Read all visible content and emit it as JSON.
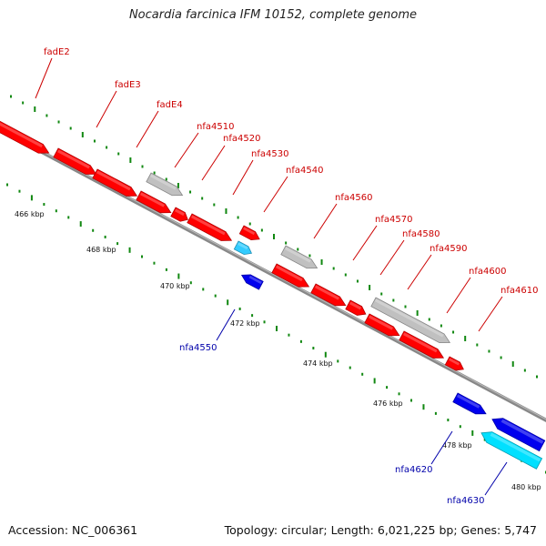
{
  "header": {
    "title": "Nocardia farcinica IFM 10152, complete genome"
  },
  "footer": {
    "accession": "Accession: NC_006361",
    "summary": "Topology: circular; Length: 6,021,225 bp; Genes: 5,747"
  },
  "colors": {
    "forward_gene": "#ff0000",
    "reverse_gene": "#0000ee",
    "other_gene": "#c0c0c0",
    "cyan_gene": "#00e0ff",
    "light_blue_gene": "#33ccff",
    "label_forward": "#cc0000",
    "label_reverse": "#0000aa",
    "backbone": "#888888",
    "tick_major": "#118811"
  },
  "scale": {
    "tick_labels": [
      "466 kbp",
      "468 kbp",
      "470 kbp",
      "472 kbp",
      "474 kbp",
      "476 kbp",
      "478 kbp",
      "480 kbp"
    ]
  },
  "genes": [
    {
      "name": "fadE2",
      "strand": "forward",
      "color": "forward_gene"
    },
    {
      "name": "fadE3",
      "strand": "forward",
      "color": "forward_gene"
    },
    {
      "name": "fadE4",
      "strand": "forward",
      "color": "forward_gene"
    },
    {
      "name": "nfa4510",
      "strand": "forward",
      "color": "other_gene"
    },
    {
      "name": "nfa4520",
      "strand": "forward",
      "color": "forward_gene"
    },
    {
      "name": "nfa4530",
      "strand": "forward",
      "color": "forward_gene"
    },
    {
      "name": "nfa4540",
      "strand": "forward",
      "color": "light_blue_gene"
    },
    {
      "name": "nfa4550",
      "strand": "reverse",
      "color": "reverse_gene"
    },
    {
      "name": "nfa4560",
      "strand": "forward",
      "color": "other_gene"
    },
    {
      "name": "nfa4570",
      "strand": "forward",
      "color": "forward_gene"
    },
    {
      "name": "nfa4580",
      "strand": "forward",
      "color": "forward_gene"
    },
    {
      "name": "nfa4590",
      "strand": "forward",
      "color": "forward_gene"
    },
    {
      "name": "nfa4600",
      "strand": "forward",
      "color": "other_gene"
    },
    {
      "name": "nfa4610",
      "strand": "forward",
      "color": "forward_gene"
    },
    {
      "name": "nfa4620",
      "strand": "reverse",
      "color": "reverse_gene"
    },
    {
      "name": "nfa4630",
      "strand": "reverse",
      "color": "cyan_gene"
    }
  ]
}
